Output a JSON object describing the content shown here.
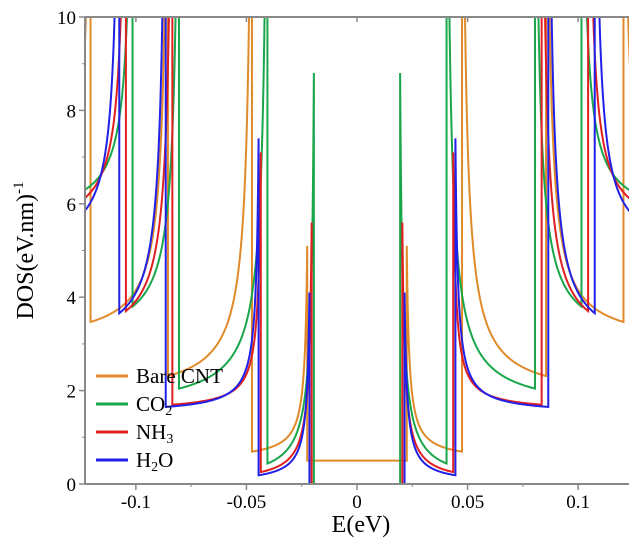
{
  "chart_data": {
    "type": "line",
    "xlabel": "E(eV)",
    "ylabel": "DOS(eV.nm)",
    "ylabel_sup": "-1",
    "xlim": [
      -0.123,
      0.123
    ],
    "ylim": [
      0,
      10
    ],
    "xticks": [
      -0.1,
      -0.05,
      0,
      0.05,
      0.1
    ],
    "xtick_labels": [
      "-0.1",
      "-0.05",
      "0",
      "0.05",
      "0.1"
    ],
    "yticks": [
      0,
      2,
      4,
      6,
      8,
      10
    ],
    "ytick_labels": [
      "0",
      "2",
      "4",
      "6",
      "8",
      "10"
    ],
    "grid": false,
    "legend_position": "bottom-left",
    "series": [
      {
        "name": "Bare CNT",
        "legend_main": "Bare CNT",
        "legend_sub": "",
        "color": "#e08a2a",
        "gap_value": 0.5,
        "subbands": [
          {
            "edge": 0.0225,
            "min": 0.5,
            "peak": 5.1
          },
          {
            "edge": 0.0475,
            "min": 1.8,
            "peak": 10.0
          },
          {
            "edge": 0.0855,
            "min": 2.95,
            "peak": 10.0
          },
          {
            "edge": 0.1205,
            "min": 4.8,
            "peak": 10.0
          }
        ]
      },
      {
        "name": "CO2",
        "legend_main": "CO",
        "legend_sub": "2",
        "color": "#1aa64a",
        "gap_value": 0,
        "subbands": [
          {
            "edge": 0.0195,
            "min": 0,
            "peak": 8.8
          },
          {
            "edge": 0.0405,
            "min": 1.55,
            "peak": 10.0
          },
          {
            "edge": 0.0805,
            "min": 2.95,
            "peak": 10.0
          },
          {
            "edge": 0.1015,
            "min": 5.6,
            "peak": 10.0
          }
        ]
      },
      {
        "name": "NH3",
        "legend_main": "NH",
        "legend_sub": "3",
        "color": "#e02020",
        "gap_value": 0,
        "subbands": [
          {
            "edge": 0.0205,
            "min": 0,
            "peak": 5.6
          },
          {
            "edge": 0.0435,
            "min": 1.55,
            "peak": 7.1
          },
          {
            "edge": 0.0835,
            "min": 2.85,
            "peak": 10.0
          },
          {
            "edge": 0.1045,
            "min": 5.3,
            "peak": 10.0
          }
        ]
      },
      {
        "name": "H2O",
        "legend_main": "H",
        "legend_sub": "2",
        "legend_suffix": "O",
        "color": "#2020e8",
        "gap_value": 0,
        "subbands": [
          {
            "edge": 0.0215,
            "min": 0,
            "peak": 4.1
          },
          {
            "edge": 0.0445,
            "min": 1.5,
            "peak": 7.4
          },
          {
            "edge": 0.0865,
            "min": 2.8,
            "peak": 10.0
          },
          {
            "edge": 0.1075,
            "min": 4.85,
            "peak": 10.0
          }
        ]
      }
    ]
  }
}
